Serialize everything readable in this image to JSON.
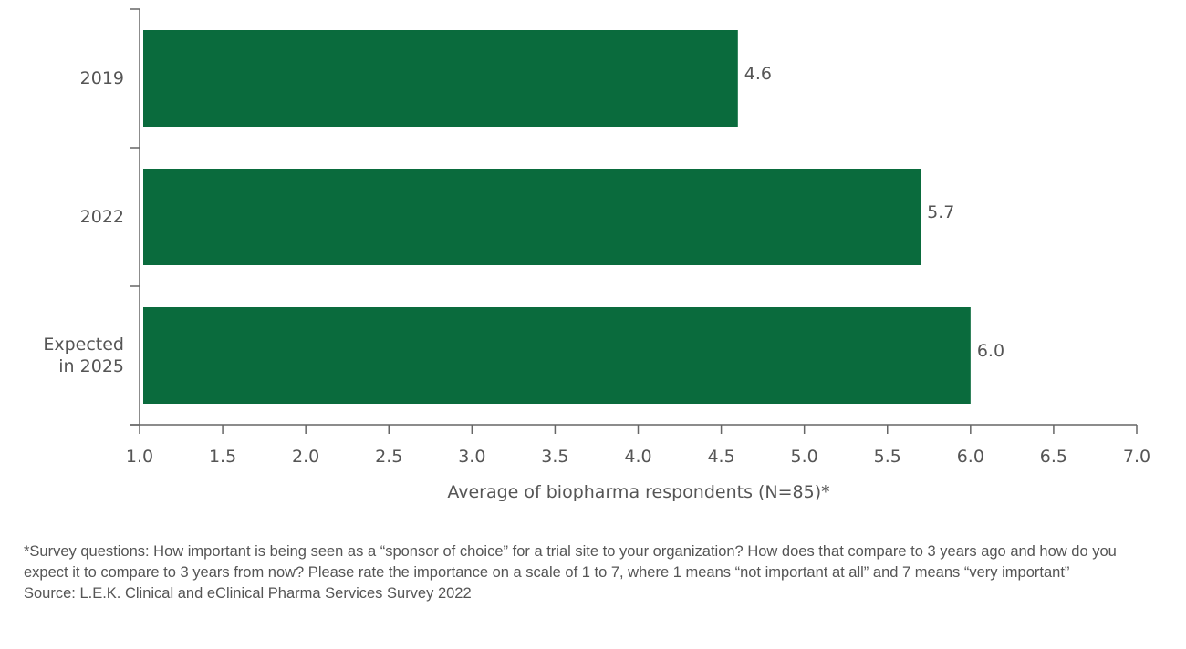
{
  "chart_data": {
    "type": "bar",
    "orientation": "horizontal",
    "categories": [
      "2019",
      "2022",
      "Expected in 2025"
    ],
    "category_lines": [
      [
        "2019"
      ],
      [
        "2022"
      ],
      [
        "Expected",
        "in 2025"
      ]
    ],
    "values": [
      4.6,
      5.7,
      6.0
    ],
    "data_labels": [
      "4.6",
      "5.7",
      "6.0"
    ],
    "xlabel": "Average of biopharma respondents (N=85)*",
    "ylabel": "",
    "xlim": [
      1.0,
      7.0
    ],
    "xticks": [
      "1.0",
      "1.5",
      "2.0",
      "2.5",
      "3.0",
      "3.5",
      "4.0",
      "4.5",
      "5.0",
      "5.5",
      "6.0",
      "6.5",
      "7.0"
    ],
    "grid": false,
    "bar_color": "#0a6b3d"
  },
  "footnote": {
    "lines": [
      "*Survey questions: How important is being seen as a “sponsor of choice” for a trial site to your organization? How does that compare to 3 years ago and how do you expect it to compare to 3 years from now? Please rate the importance on a scale of 1 to 7, where 1 means “not important at all” and 7 means “very important”",
      "Source: L.E.K. Clinical and eClinical Pharma Services Survey 2022"
    ]
  }
}
